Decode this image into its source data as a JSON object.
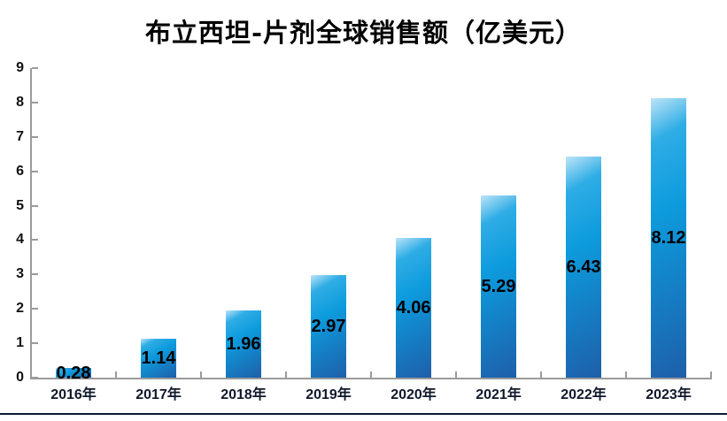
{
  "chart_data": {
    "type": "bar",
    "title": "布立西坦-片剂全球销售额（亿美元）",
    "categories": [
      "2016年",
      "2017年",
      "2018年",
      "2019年",
      "2020年",
      "2021年",
      "2022年",
      "2023年"
    ],
    "values": [
      0.28,
      1.14,
      1.96,
      2.97,
      4.06,
      5.29,
      6.43,
      8.12
    ],
    "data_labels": [
      "0.28",
      "1.14",
      "1.96",
      "2.97",
      "4.06",
      "5.29",
      "6.43",
      "8.12"
    ],
    "xlabel": "",
    "ylabel": "",
    "ylim": [
      0,
      9
    ],
    "ytick_labels": [
      "0",
      "1",
      "2",
      "3",
      "4",
      "5",
      "6",
      "7",
      "8",
      "9"
    ],
    "grid": false,
    "legend": "none",
    "data_label_position": "center",
    "colors": {
      "bar_gradient": [
        "#bde4f8",
        "#2fade5",
        "#0d9bdd",
        "#1e5fa9"
      ],
      "axis_line": "#9b9b9b",
      "tick_mark": "#9b9b9b",
      "title_text": "#000000",
      "y_tick_text": "#111111",
      "x_tick_text": "#10182b",
      "data_label_text": "#000000",
      "bottom_border": "#0d1b33",
      "background": "#ffffff"
    }
  }
}
